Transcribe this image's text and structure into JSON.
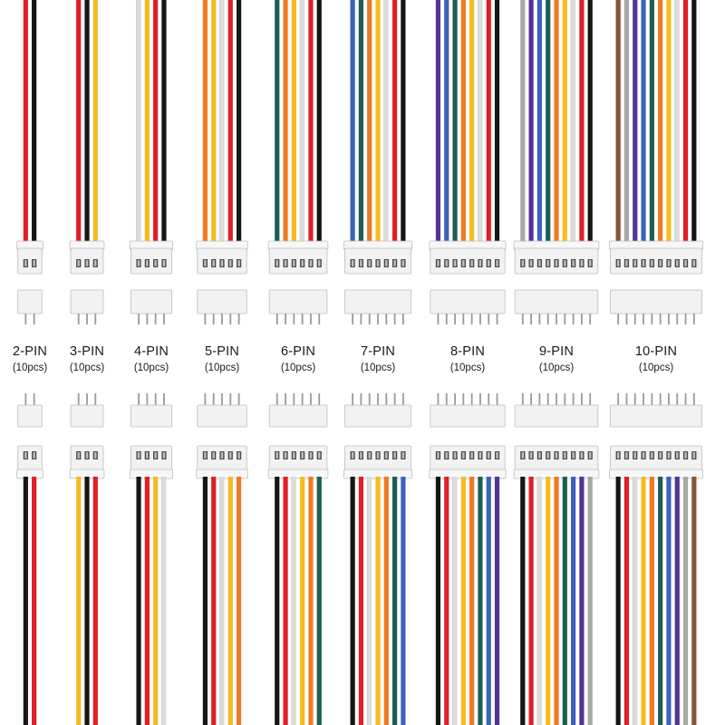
{
  "palette": {
    "black": "#161616",
    "red": "#e01f26",
    "yellow": "#f5bb22",
    "white": "#dcdcdc",
    "orange": "#f07a22",
    "green": "#1d5e52",
    "blue": "#3a63b8",
    "purple": "#55339a",
    "grey": "#a8a8a8",
    "brown": "#8a5533",
    "connector_body": "#f2f2f2",
    "connector_edge": "#bdbdbd",
    "pin_metal": "#9a9a9a"
  },
  "connectors": [
    {
      "id": "2pin",
      "label": "2-PIN",
      "quantity": "(10pcs)",
      "top_wires": [
        "red",
        "black"
      ],
      "bottom_wires": [
        "black",
        "red"
      ]
    },
    {
      "id": "3pin",
      "label": "3-PIN",
      "quantity": "(10pcs)",
      "top_wires": [
        "red",
        "black",
        "yellow"
      ],
      "bottom_wires": [
        "yellow",
        "black",
        "red"
      ]
    },
    {
      "id": "4pin",
      "label": "4-PIN",
      "quantity": "(10pcs)",
      "top_wires": [
        "white",
        "yellow",
        "red",
        "black"
      ],
      "bottom_wires": [
        "black",
        "red",
        "yellow",
        "white"
      ]
    },
    {
      "id": "5pin",
      "label": "5-PIN",
      "quantity": "(10pcs)",
      "top_wires": [
        "orange",
        "yellow",
        "white",
        "red",
        "black"
      ],
      "bottom_wires": [
        "black",
        "red",
        "white",
        "yellow",
        "orange"
      ]
    },
    {
      "id": "6pin",
      "label": "6-PIN",
      "quantity": "(10pcs)",
      "top_wires": [
        "green",
        "orange",
        "yellow",
        "white",
        "red",
        "black"
      ],
      "bottom_wires": [
        "black",
        "red",
        "white",
        "yellow",
        "orange",
        "green"
      ]
    },
    {
      "id": "7pin",
      "label": "7-PIN",
      "quantity": "(10pcs)",
      "top_wires": [
        "blue",
        "green",
        "orange",
        "yellow",
        "white",
        "red",
        "black"
      ],
      "bottom_wires": [
        "black",
        "red",
        "white",
        "yellow",
        "orange",
        "green",
        "blue"
      ]
    },
    {
      "id": "8pin",
      "label": "8-PIN",
      "quantity": "(10pcs)",
      "top_wires": [
        "purple",
        "blue",
        "green",
        "orange",
        "yellow",
        "white",
        "red",
        "black"
      ],
      "bottom_wires": [
        "black",
        "red",
        "white",
        "yellow",
        "orange",
        "green",
        "blue",
        "purple"
      ]
    },
    {
      "id": "9pin",
      "label": "9-PIN",
      "quantity": "(10pcs)",
      "top_wires": [
        "grey",
        "purple",
        "blue",
        "green",
        "orange",
        "yellow",
        "white",
        "red",
        "black"
      ],
      "bottom_wires": [
        "black",
        "red",
        "white",
        "yellow",
        "orange",
        "green",
        "blue",
        "purple",
        "grey"
      ]
    },
    {
      "id": "10pin",
      "label": "10-PIN",
      "quantity": "(10pcs)",
      "top_wires": [
        "brown",
        "grey",
        "purple",
        "blue",
        "green",
        "orange",
        "yellow",
        "white",
        "red",
        "black"
      ],
      "bottom_wires": [
        "black",
        "red",
        "white",
        "yellow",
        "orange",
        "green",
        "blue",
        "purple",
        "grey",
        "brown"
      ]
    }
  ]
}
